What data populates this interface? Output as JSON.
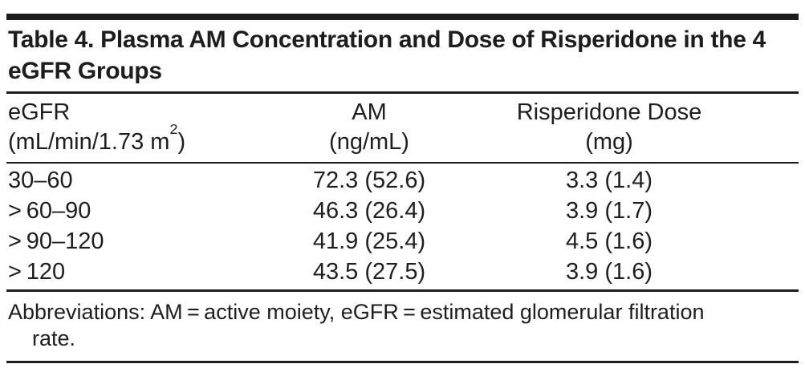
{
  "table": {
    "title": "Table 4. Plasma AM Concentration and Dose of Risperidone in the 4 eGFR Groups",
    "columns": {
      "egfr": {
        "label": "eGFR",
        "unit_pre": "(mL/min/1.73 m",
        "unit_sup": "2",
        "unit_post": ")"
      },
      "am": {
        "label": "AM",
        "unit": "(ng/mL)"
      },
      "dose": {
        "label": "Risperidone Dose",
        "unit": "(mg)"
      }
    },
    "rows": [
      {
        "egfr": "30–60",
        "am": "72.3 (52.6)",
        "dose": "3.3 (1.4)"
      },
      {
        "egfr": "> 60–90",
        "am": "46.3 (26.4)",
        "dose": "3.9 (1.7)"
      },
      {
        "egfr": "> 90–120",
        "am": "41.9 (25.4)",
        "dose": "4.5 (1.6)"
      },
      {
        "egfr": "> 120",
        "am": "43.5 (27.5)",
        "dose": "3.9 (1.6)"
      }
    ],
    "footnote": {
      "line1": "Abbreviations: AM = active moiety, eGFR = estimated glomerular filtration",
      "line2": "rate."
    }
  },
  "colors": {
    "ink": "#1d1d1d",
    "background": "#ffffff"
  },
  "chart_data": {
    "type": "table",
    "title": "Table 4. Plasma AM Concentration and Dose of Risperidone in the 4 eGFR Groups",
    "columns": [
      "eGFR (mL/min/1.73 m2)",
      "AM (ng/mL)",
      "Risperidone Dose (mg)"
    ],
    "rows": [
      [
        "30–60",
        "72.3 (52.6)",
        "3.3 (1.4)"
      ],
      [
        ">60–90",
        "46.3 (26.4)",
        "3.9 (1.7)"
      ],
      [
        ">90–120",
        "41.9 (25.4)",
        "4.5 (1.6)"
      ],
      [
        ">120",
        "43.5 (27.5)",
        "3.9 (1.6)"
      ]
    ],
    "footnote": "Abbreviations: AM = active moiety, eGFR = estimated glomerular filtration rate."
  }
}
